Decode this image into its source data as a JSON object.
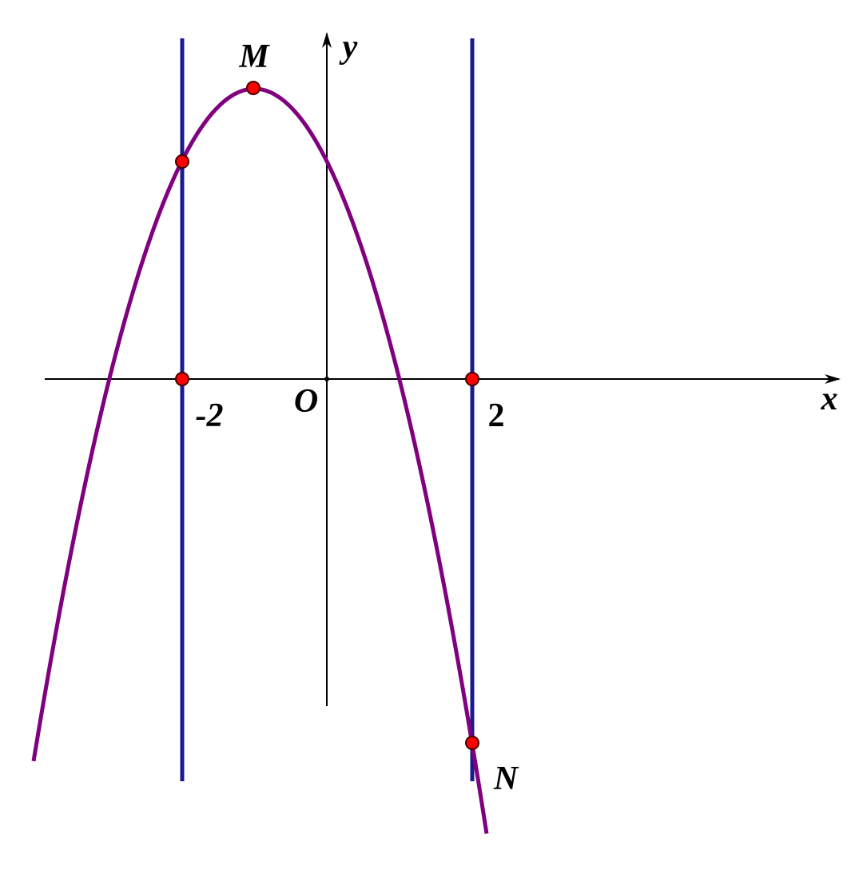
{
  "labels": {
    "M": "M",
    "y": "y",
    "x": "x",
    "O": "O",
    "minus_two": "-2",
    "two": "2",
    "N": "N"
  }
}
